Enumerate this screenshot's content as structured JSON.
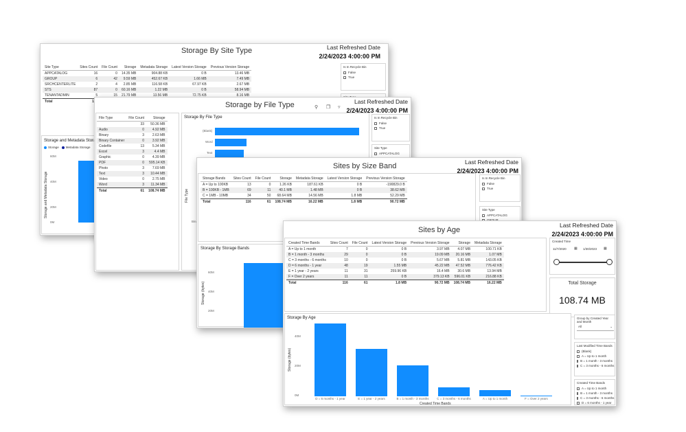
{
  "common": {
    "refresh_label": "Last Refreshed Date",
    "refresh_value": "2/24/2023 4:00:00 PM",
    "accent": "#118dff"
  },
  "site_type": {
    "title": "Storage By Site Type",
    "table": {
      "headers": [
        "Site Type",
        "Sites Count",
        "File Count",
        "Storage",
        "Metadata Storage",
        "Latest Version Storage",
        "Previous Version Storage"
      ],
      "rows": [
        [
          "APPCATALOG",
          "16",
          "0",
          "14.35 MB",
          "904.88 KB",
          "0 B",
          "13.46 MB"
        ],
        [
          "GROUP",
          "6",
          "42",
          "9.59 MB",
          "452.67 KB",
          "1.66 MB",
          "7.49 MB"
        ],
        [
          "SRCHCENTERLITE",
          "2",
          "4",
          "2.85 MB",
          "116.58 KB",
          "67.97 KB",
          "2.67 MB"
        ],
        [
          "STS",
          "87",
          "0",
          "60.16 MB",
          "1.22 MB",
          "0 B",
          "58.94 MB"
        ],
        [
          "TENANTADMIN",
          "5",
          "15",
          "21.79 MB",
          "13.56 MB",
          "72.75 KB",
          "8.16 MB"
        ]
      ],
      "total": [
        "Total",
        "116",
        "",
        "",
        "",
        "",
        ""
      ]
    },
    "slicer1": {
      "title": "Is In Recycle Bin",
      "options": [
        "False",
        "True"
      ]
    },
    "slicer2": {
      "title": "Site Type"
    },
    "chart": {
      "title": "Storage and Metadata Storage",
      "legend": [
        "Storage",
        "Metadata Storage"
      ],
      "legend_colors": [
        "#118dff",
        "#12239e"
      ],
      "ylabel": "Storage and Metadata Storage",
      "ticks": [
        "60M",
        "40M",
        "20M",
        "0M"
      ]
    }
  },
  "file_type": {
    "title": "Storage by File Type",
    "table": {
      "headers": [
        "File Type",
        "File Count",
        "Storage"
      ],
      "rows": [
        [
          "",
          "33",
          "50.36 MB"
        ],
        [
          "Audio",
          "0",
          "4.92 MB"
        ],
        [
          "Binary",
          "3",
          "2.63 MB"
        ],
        [
          "Binary Container",
          "0",
          "3.92 MB"
        ],
        [
          "Codefile",
          "13",
          "5.34 MB"
        ],
        [
          "Excel",
          "3",
          "4.4 MB"
        ],
        [
          "Graphic",
          "0",
          "4.39 MB"
        ],
        [
          "PDF",
          "0",
          "595.14 KB"
        ],
        [
          "Photo",
          "3",
          "7.69 MB"
        ],
        [
          "Text",
          "3",
          "10.44 MB"
        ],
        [
          "Video",
          "0",
          "2.75 MB"
        ],
        [
          "Word",
          "3",
          "11.34 MB"
        ]
      ],
      "total": [
        "Total",
        "61",
        "108.74 MB"
      ]
    },
    "chart_title": "Storage By File Type",
    "ylabel": "File Type",
    "bar_labels": [
      "(Blank)",
      "Word",
      "Text"
    ],
    "bar_extra_label": "Binar",
    "slicer1": {
      "title": "Is In Recycle Bin",
      "options": [
        "False",
        "True"
      ]
    },
    "slicer2": {
      "title": "Site Type",
      "options": [
        "APPCATALOG",
        "GROUP"
      ]
    }
  },
  "size_band": {
    "title": "Sites by Size Band",
    "table": {
      "headers": [
        "Storage Bands",
        "Sites Count",
        "File Count",
        "Storage",
        "Metadata Storage",
        "Latest Version Storage",
        "Previous Version Storage"
      ],
      "rows": [
        [
          "A = Up to 100KB",
          "13",
          "0",
          "1.26 KB",
          "187.61 KB",
          "0 B",
          "-190829.0 B"
        ],
        [
          "B = 100KB - 1MB",
          "69",
          "11",
          "40.1 MB",
          "1.48 MB",
          "0 B",
          "38.62 MB"
        ],
        [
          "C = 1MB - 10MB",
          "34",
          "50",
          "68.64 MB",
          "14.56 MB",
          "1.8 MB",
          "52.29 MB"
        ]
      ],
      "total": [
        "Total",
        "116",
        "61",
        "108.74 MB",
        "16.22 MB",
        "1.8 MB",
        "90.72 MB"
      ]
    },
    "chart_title": "Storage By Storage Bands",
    "ylabel": "Storage (bytes)",
    "ticks": [
      "60M",
      "40M",
      "20M"
    ],
    "slicer1": {
      "title": "Is In Recycle Bin",
      "options": [
        "False",
        "True"
      ]
    },
    "slicer2": {
      "title": "Site Type",
      "options": [
        "APPCATALOG",
        "GROUP"
      ]
    }
  },
  "age": {
    "title": "Sites by Age",
    "table": {
      "headers": [
        "Created Time Bands",
        "Sites Count",
        "File Count",
        "Latest Version Storage",
        "Previous Version Storage",
        "Storage",
        "Metadata Storage"
      ],
      "rows": [
        [
          "A = Up to 1 month",
          "7",
          "0",
          "0 B",
          "3.97 MB",
          "4.07 MB",
          "100.71 KB"
        ],
        [
          "B = 1 month - 3 months",
          "29",
          "0",
          "0 B",
          "19.09 MB",
          "20.16 MB",
          "1.07 MB"
        ],
        [
          "C = 3 months - 6 months",
          "10",
          "0",
          "0 B",
          "5.67 MB",
          "5.81 MB",
          "143.05 KB"
        ],
        [
          "D = 6 months - 1 year",
          "48",
          "19",
          "1.55 MB",
          "45.22 MB",
          "47.52 MB",
          "776.42 KB"
        ],
        [
          "E = 1 year - 2 years",
          "11",
          "31",
          "259.96 KB",
          "16.4 MB",
          "30.6 MB",
          "13.94 MB"
        ],
        [
          "F = Over 2 years",
          "11",
          "11",
          "0 B",
          "379.13 KB",
          "596.01 KB",
          "216.88 KB"
        ]
      ],
      "total": [
        "Total",
        "116",
        "61",
        "1.8 MB",
        "90.72 MB",
        "108.74 MB",
        "16.22 MB"
      ]
    },
    "created_time": {
      "title": "Created Time",
      "start": "11/7/2020",
      "end": "1/30/2023"
    },
    "total_storage": {
      "label": "Total Storage",
      "value": "108.74 MB"
    },
    "group_slicer": {
      "title": "Group by Created Year and Month",
      "value": "All"
    },
    "lm_slicer": {
      "title": "Last Modified Time Bands",
      "options": [
        "(Blank)",
        "A = Up to 1 month",
        "B = 1 month - 3 months",
        "C = 3 months - 6 months"
      ]
    },
    "ct_slicer": {
      "title": "Created Time Bands",
      "options": [
        "A = Up to 1 month",
        "B = 1 month - 3 months",
        "C = 3 months - 6 months",
        "D = 6 months - 1 year"
      ]
    }
  },
  "chart_data": {
    "type": "bar",
    "title": "Storage By Age",
    "xlabel": "Created Time Bands",
    "ylabel": "Storage (bytes)",
    "categories": [
      "D = 6 months - 1 year",
      "E = 1 year - 2 years",
      "B = 1 month - 3 months",
      "C = 3 months - 6 months",
      "A = Up to 1 month",
      "F = Over 2 years"
    ],
    "values": [
      47.52,
      30.6,
      20.16,
      5.81,
      4.07,
      0.6
    ],
    "ylim": [
      0,
      50
    ],
    "yticks": [
      0,
      20,
      40
    ],
    "ytick_labels": [
      "0M",
      "20M",
      "40M"
    ],
    "grid": false
  }
}
